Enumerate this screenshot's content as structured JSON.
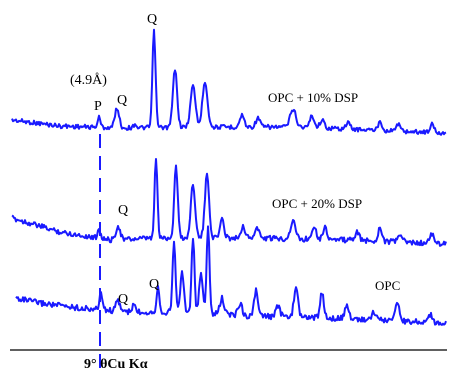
{
  "chart_data": {
    "type": "line",
    "title": "",
    "xlabel": "9° θCu Kα",
    "ylabel": "",
    "grid": false,
    "legend": "none",
    "colors": {
      "trace": "#1a1aff",
      "marker": "#1a1aff",
      "text": "#000000"
    },
    "series": [
      {
        "name": "OPC + 10% DSP",
        "peaks": [
          {
            "label": "P",
            "note": "(4.9Å)"
          },
          {
            "label": "Q"
          },
          {
            "label": "Q"
          }
        ]
      },
      {
        "name": "OPC + 20% DSP",
        "peaks": [
          {
            "label": "Q"
          }
        ]
      },
      {
        "name": "OPC",
        "peaks": [
          {
            "label": "Q"
          },
          {
            "label": "Q"
          }
        ]
      }
    ]
  }
}
